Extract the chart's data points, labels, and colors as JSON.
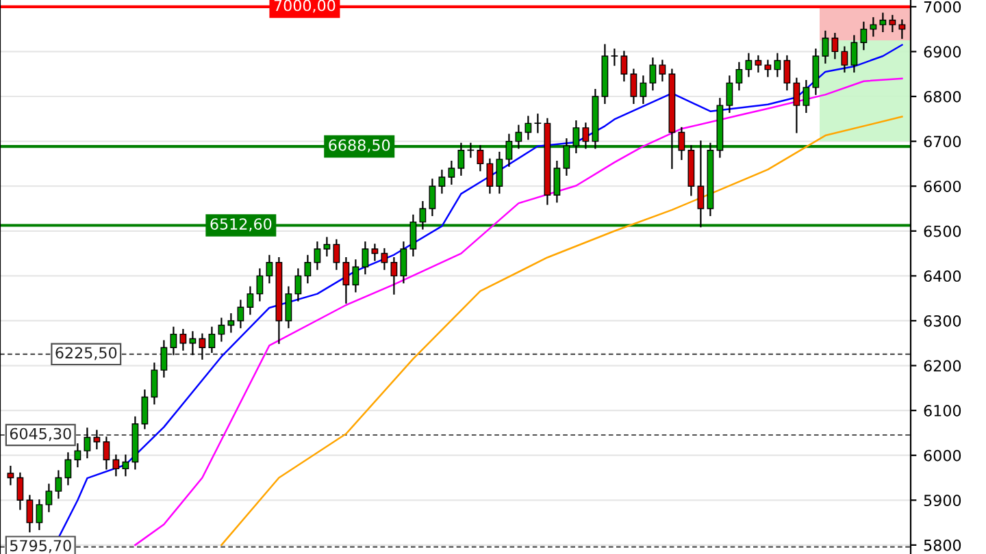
{
  "chart_data": {
    "type": "candlestick",
    "categories": [
      null,
      null,
      null,
      null,
      null,
      null,
      null,
      null,
      null,
      null,
      null,
      null,
      null,
      null,
      null,
      null,
      null,
      null,
      null,
      null,
      null,
      null,
      null,
      null,
      null,
      null,
      null,
      null,
      null,
      null,
      null,
      null,
      null,
      null,
      null,
      null,
      null,
      null,
      null,
      null,
      null,
      null,
      null,
      null,
      null,
      null,
      null,
      null,
      null,
      null,
      null,
      null,
      null,
      null,
      null,
      null,
      null,
      null,
      null,
      null,
      null,
      null,
      null,
      null,
      null,
      null,
      null,
      null,
      null,
      null,
      null,
      null,
      null,
      null,
      null,
      null,
      null,
      null,
      null,
      null,
      null,
      null,
      null,
      null,
      null,
      null,
      null,
      null,
      null,
      null,
      null,
      null,
      null,
      null
    ],
    "ohlc": [
      [
        5960,
        5975,
        5935,
        5950
      ],
      [
        5950,
        5960,
        5880,
        5900
      ],
      [
        5900,
        5910,
        5830,
        5850
      ],
      [
        5850,
        5900,
        5835,
        5890
      ],
      [
        5890,
        5935,
        5875,
        5920
      ],
      [
        5920,
        5965,
        5905,
        5950
      ],
      [
        5950,
        6005,
        5935,
        5990
      ],
      [
        5990,
        6025,
        5975,
        6010
      ],
      [
        6010,
        6060,
        5995,
        6040
      ],
      [
        6040,
        6055,
        6015,
        6030
      ],
      [
        6030,
        6040,
        5970,
        5990
      ],
      [
        5990,
        6000,
        5955,
        5970
      ],
      [
        5970,
        6000,
        5955,
        5985
      ],
      [
        5985,
        6085,
        5970,
        6070
      ],
      [
        6070,
        6145,
        6060,
        6130
      ],
      [
        6130,
        6205,
        6115,
        6190
      ],
      [
        6190,
        6255,
        6175,
        6240
      ],
      [
        6240,
        6285,
        6225,
        6270
      ],
      [
        6270,
        6280,
        6235,
        6250
      ],
      [
        6250,
        6275,
        6225,
        6260
      ],
      [
        6260,
        6270,
        6215,
        6240
      ],
      [
        6240,
        6285,
        6230,
        6270
      ],
      [
        6270,
        6305,
        6255,
        6290
      ],
      [
        6290,
        6315,
        6275,
        6300
      ],
      [
        6300,
        6345,
        6285,
        6330
      ],
      [
        6330,
        6375,
        6315,
        6360
      ],
      [
        6360,
        6415,
        6345,
        6400
      ],
      [
        6400,
        6445,
        6385,
        6430
      ],
      [
        6430,
        6440,
        6250,
        6300
      ],
      [
        6300,
        6375,
        6285,
        6360
      ],
      [
        6360,
        6415,
        6345,
        6400
      ],
      [
        6400,
        6445,
        6385,
        6430
      ],
      [
        6430,
        6475,
        6415,
        6460
      ],
      [
        6460,
        6485,
        6445,
        6470
      ],
      [
        6470,
        6480,
        6415,
        6430
      ],
      [
        6430,
        6440,
        6340,
        6380
      ],
      [
        6380,
        6435,
        6365,
        6420
      ],
      [
        6420,
        6475,
        6405,
        6460
      ],
      [
        6460,
        6470,
        6435,
        6450
      ],
      [
        6450,
        6460,
        6415,
        6430
      ],
      [
        6430,
        6440,
        6360,
        6400
      ],
      [
        6400,
        6475,
        6385,
        6460
      ],
      [
        6460,
        6535,
        6445,
        6520
      ],
      [
        6520,
        6565,
        6505,
        6550
      ],
      [
        6550,
        6615,
        6535,
        6600
      ],
      [
        6600,
        6635,
        6585,
        6620
      ],
      [
        6620,
        6655,
        6605,
        6640
      ],
      [
        6640,
        6695,
        6625,
        6680
      ],
      [
        6680,
        6695,
        6665,
        6680
      ],
      [
        6680,
        6690,
        6635,
        6650
      ],
      [
        6650,
        6660,
        6585,
        6600
      ],
      [
        6600,
        6675,
        6585,
        6660
      ],
      [
        6660,
        6715,
        6645,
        6700
      ],
      [
        6700,
        6735,
        6685,
        6720
      ],
      [
        6720,
        6755,
        6705,
        6740
      ],
      [
        6740,
        6760,
        6720,
        6740
      ],
      [
        6740,
        6750,
        6560,
        6580
      ],
      [
        6580,
        6655,
        6565,
        6640
      ],
      [
        6640,
        6705,
        6625,
        6690
      ],
      [
        6690,
        6745,
        6675,
        6730
      ],
      [
        6730,
        6740,
        6685,
        6700
      ],
      [
        6700,
        6815,
        6685,
        6800
      ],
      [
        6800,
        6915,
        6785,
        6890
      ],
      [
        6890,
        6905,
        6870,
        6890
      ],
      [
        6890,
        6900,
        6835,
        6850
      ],
      [
        6850,
        6860,
        6785,
        6800
      ],
      [
        6800,
        6845,
        6785,
        6830
      ],
      [
        6830,
        6885,
        6815,
        6870
      ],
      [
        6870,
        6880,
        6835,
        6850
      ],
      [
        6850,
        6860,
        6640,
        6720
      ],
      [
        6720,
        6730,
        6660,
        6680
      ],
      [
        6680,
        6690,
        6580,
        6600
      ],
      [
        6600,
        6700,
        6510,
        6550
      ],
      [
        6550,
        6695,
        6535,
        6680
      ],
      [
        6680,
        6795,
        6665,
        6780
      ],
      [
        6780,
        6845,
        6765,
        6830
      ],
      [
        6830,
        6875,
        6815,
        6860
      ],
      [
        6860,
        6895,
        6845,
        6880
      ],
      [
        6880,
        6890,
        6855,
        6870
      ],
      [
        6870,
        6880,
        6845,
        6860
      ],
      [
        6860,
        6895,
        6845,
        6880
      ],
      [
        6880,
        6890,
        6815,
        6830
      ],
      [
        6830,
        6840,
        6720,
        6780
      ],
      [
        6780,
        6835,
        6765,
        6820
      ],
      [
        6820,
        6905,
        6805,
        6890
      ],
      [
        6890,
        6945,
        6875,
        6930
      ],
      [
        6930,
        6940,
        6885,
        6900
      ],
      [
        6900,
        6910,
        6855,
        6870
      ],
      [
        6870,
        6935,
        6855,
        6920
      ],
      [
        6920,
        6965,
        6905,
        6950
      ],
      [
        6950,
        6975,
        6935,
        6960
      ],
      [
        6960,
        6985,
        6945,
        6970
      ],
      [
        6970,
        6980,
        6945,
        6960
      ],
      [
        6960,
        6970,
        6930,
        6950
      ]
    ],
    "colors": [
      "#d00000",
      "#d00000",
      "#d00000",
      "#00a000",
      "#00a000",
      "#00a000",
      "#00a000",
      "#00a000",
      "#00a000",
      "#d00000",
      "#d00000",
      "#d00000",
      "#00a000",
      "#00a000",
      "#00a000",
      "#00a000",
      "#00a000",
      "#00a000",
      "#d00000",
      "#00a000",
      "#d00000",
      "#00a000",
      "#00a000",
      "#00a000",
      "#00a000",
      "#00a000",
      "#00a000",
      "#00a000",
      "#d00000",
      "#00a000",
      "#00a000",
      "#00a000",
      "#00a000",
      "#00a000",
      "#d00000",
      "#d00000",
      "#00a000",
      "#00a000",
      "#d00000",
      "#d00000",
      "#d00000",
      "#00a000",
      "#00a000",
      "#00a000",
      "#00a000",
      "#00a000",
      "#00a000",
      "#00a000",
      "#00a000",
      "#d00000",
      "#d00000",
      "#00a000",
      "#00a000",
      "#00a000",
      "#00a000",
      "#00a000",
      "#d00000",
      "#00a000",
      "#00a000",
      "#00a000",
      "#d00000",
      "#00a000",
      "#00a000",
      "#00a000",
      "#d00000",
      "#d00000",
      "#00a000",
      "#00a000",
      "#d00000",
      "#d00000",
      "#d00000",
      "#d00000",
      "#d00000",
      "#00a000",
      "#00a000",
      "#00a000",
      "#00a000",
      "#00a000",
      "#d00000",
      "#d00000",
      "#00a000",
      "#d00000",
      "#d00000",
      "#00a000",
      "#00a000",
      "#00a000",
      "#d00000",
      "#d00000",
      "#00a000",
      "#00a000",
      "#00a000",
      "#00a000",
      "#d00000",
      "#d00000"
    ],
    "series": [
      {
        "type": "line",
        "color": "#0000ff",
        "values": [
          null,
          null,
          null,
          null,
          null,
          5816,
          null,
          5900,
          5949,
          null,
          null,
          null,
          5979,
          null,
          null,
          null,
          6063,
          null,
          null,
          null,
          null,
          null,
          6220,
          null,
          null,
          null,
          null,
          6329,
          null,
          null,
          null,
          null,
          6360,
          null,
          null,
          null,
          6411,
          null,
          null,
          null,
          6447,
          null,
          null,
          null,
          null,
          6511,
          null,
          6583,
          null,
          null,
          6622,
          null,
          null,
          null,
          null,
          6689,
          null,
          null,
          null,
          6698,
          null,
          null,
          6734,
          6749,
          null,
          null,
          null,
          null,
          null,
          6807,
          null,
          null,
          null,
          6767,
          null,
          null,
          null,
          null,
          null,
          6782,
          null,
          null,
          6798,
          null,
          null,
          6855,
          null,
          null,
          6867,
          null,
          null,
          6890,
          null,
          6915
        ]
      },
      {
        "type": "line",
        "color": "#ff00ff",
        "values": [
          null,
          null,
          null,
          null,
          null,
          null,
          null,
          null,
          null,
          null,
          null,
          null,
          null,
          5800,
          null,
          null,
          5846,
          null,
          null,
          null,
          5950,
          null,
          null,
          null,
          null,
          null,
          null,
          6245,
          null,
          null,
          null,
          null,
          null,
          null,
          null,
          6335,
          null,
          null,
          null,
          null,
          6381,
          null,
          null,
          null,
          null,
          null,
          null,
          6450,
          null,
          null,
          null,
          null,
          null,
          6562,
          null,
          null,
          null,
          null,
          null,
          6601,
          null,
          null,
          null,
          6653,
          null,
          null,
          6689,
          null,
          null,
          null,
          6728,
          null,
          null,
          null,
          null,
          null,
          6758,
          null,
          null,
          6773,
          null,
          null,
          null,
          null,
          null,
          6804,
          null,
          null,
          null,
          6834,
          null,
          null,
          null,
          6840
        ]
      },
      {
        "type": "line",
        "color": "#ffa500",
        "values": [
          null,
          null,
          null,
          null,
          null,
          null,
          null,
          null,
          null,
          null,
          null,
          null,
          null,
          null,
          null,
          null,
          null,
          null,
          null,
          null,
          null,
          null,
          5800,
          null,
          null,
          null,
          null,
          null,
          5950,
          null,
          null,
          null,
          null,
          null,
          null,
          6048,
          null,
          null,
          null,
          null,
          null,
          null,
          6215,
          null,
          null,
          null,
          null,
          null,
          null,
          6366,
          null,
          null,
          null,
          null,
          null,
          null,
          6441,
          null,
          null,
          null,
          null,
          null,
          null,
          6500,
          null,
          null,
          null,
          null,
          null,
          6547,
          null,
          null,
          null,
          6583,
          null,
          null,
          null,
          null,
          null,
          6637,
          null,
          null,
          null,
          null,
          null,
          6713,
          null,
          null,
          null,
          null,
          null,
          null,
          null,
          6755
        ]
      }
    ],
    "ylim": [
      5780,
      7015
    ],
    "yticks": [
      5800,
      5900,
      6000,
      6100,
      6200,
      6300,
      6400,
      6500,
      6600,
      6700,
      6800,
      6900,
      7000
    ],
    "grid": "y",
    "legend": false,
    "ref_lines": [
      {
        "axis": "y",
        "value": 7000,
        "label": "7000,00",
        "color": "#ff0000",
        "line_style": "solid"
      },
      {
        "axis": "y",
        "value": 6688.5,
        "label": "6688,50",
        "color": "#008000",
        "line_style": "solid"
      },
      {
        "axis": "y",
        "value": 6512.6,
        "label": "6512,60",
        "color": "#008000",
        "line_style": "solid"
      },
      {
        "axis": "y",
        "value": 6225.5,
        "label": "6225,50",
        "color": "#505050",
        "line_style": "dashed"
      },
      {
        "axis": "y",
        "value": 6045.3,
        "label": "6045,30",
        "color": "#505050",
        "line_style": "dashed"
      },
      {
        "axis": "y",
        "value": 5795.7,
        "label": "5795,70",
        "color": "#505050",
        "line_style": "dashed"
      }
    ],
    "bands": [
      {
        "axis": "y",
        "from": 6925,
        "to": 7000,
        "color": "#f8b4b4"
      },
      {
        "axis": "y",
        "from": 6700,
        "to": 6925,
        "color": "#c8f5c8"
      }
    ]
  }
}
